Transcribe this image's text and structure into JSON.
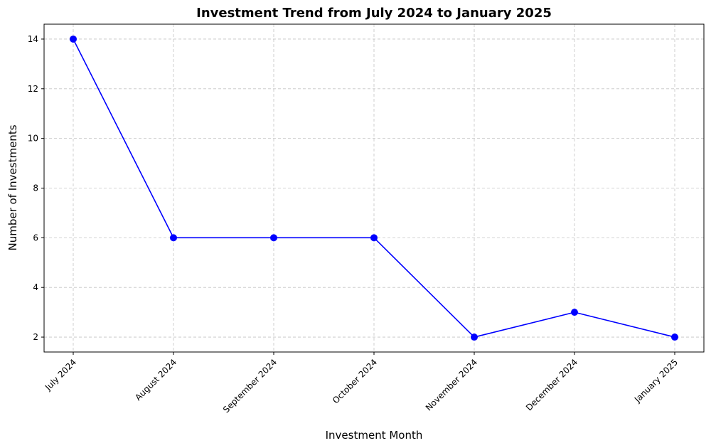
{
  "chart_data": {
    "type": "line",
    "title": "Investment Trend from July 2024 to January 2025",
    "xlabel": "Investment Month",
    "ylabel": "Number of Investments",
    "categories": [
      "July 2024",
      "August 2024",
      "September 2024",
      "October 2024",
      "November 2024",
      "December 2024",
      "January 2025"
    ],
    "series": [
      {
        "values": [
          14,
          6,
          6,
          6,
          2,
          3,
          2
        ],
        "color": "#0000ff",
        "marker": "circle"
      }
    ],
    "ylim": [
      1.4,
      14.6
    ],
    "yticks": [
      2,
      4,
      6,
      8,
      10,
      12,
      14
    ],
    "grid": true,
    "legend": "none"
  }
}
